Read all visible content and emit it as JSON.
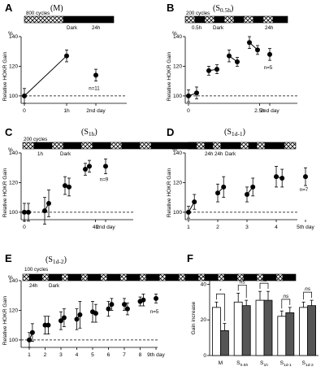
{
  "panels": [
    {
      "letter": "A",
      "title": "(M)",
      "ylabel": "Relative HOKR Gain",
      "yunit": "%",
      "bar": {
        "cycles": "800 cycles",
        "dark": "Dark",
        "hours": "24h"
      },
      "note": "n=11",
      "xticks": [
        "0",
        "1h",
        "2nd day"
      ]
    },
    {
      "letter": "B",
      "title": "(S0.5h)",
      "ylabel": "Relative HOKR Gain",
      "yunit": "%",
      "bar": {
        "cycles": "200 cycles",
        "interval": "0.5h",
        "dark": "Dark",
        "hours": "24h"
      },
      "note": "n=5",
      "xticks": [
        "0",
        "2.5h",
        "2nd day"
      ]
    },
    {
      "letter": "C",
      "title": "(S1h)",
      "ylabel": "Relative HOKR Gain",
      "yunit": "%",
      "bar": {
        "cycles": "200 cycles",
        "interval": "1h",
        "dark": "Dark",
        "hours": "24h"
      },
      "note": "n=9",
      "xticks": [
        "0",
        "4h",
        "2nd day"
      ]
    },
    {
      "letter": "D",
      "title": "(S1d-1)",
      "ylabel": "Relative HOKR Gain",
      "yunit": "%",
      "bar": {
        "cycles": "200 cycles",
        "interval": "24h",
        "dark": "Dark"
      },
      "note": "n=7",
      "xticks": [
        "1",
        "2",
        "3",
        "4",
        "5th day"
      ]
    },
    {
      "letter": "E",
      "title": "(S1d-2)",
      "ylabel": "Relative HOKR Gain",
      "yunit": "%",
      "bar": {
        "cycles": "100 cycles",
        "interval": "24h",
        "dark": "Dark"
      },
      "note": "n=5",
      "xticks": [
        "1",
        "2",
        "3",
        "4",
        "5",
        "6",
        "7",
        "8",
        "9th day"
      ]
    },
    {
      "letter": "F",
      "ylabel": "Gain increase",
      "yunit": "%",
      "sig": [
        "*",
        "ns",
        "ns",
        "ns",
        "ns"
      ],
      "xticks": [
        "M",
        "S0.5h",
        "S1h",
        "S1d-1",
        "S1d-2"
      ]
    }
  ],
  "chart_data": [
    {
      "type": "line",
      "panel": "A",
      "ylim": [
        95,
        140
      ],
      "yticks": [
        100,
        120,
        140
      ],
      "series": [
        {
          "x": [
            0,
            1,
            2
          ],
          "y": [
            100,
            127,
            114
          ],
          "err": [
            5,
            4,
            4
          ]
        }
      ]
    },
    {
      "type": "line",
      "panel": "B",
      "ylim": [
        95,
        140
      ],
      "yticks": [
        100,
        120,
        140
      ],
      "series": [
        {
          "x": [
            0,
            0.2,
            0.5,
            0.7,
            1.0,
            1.2,
            1.5,
            1.7,
            2.0
          ],
          "y": [
            100,
            102,
            117,
            118,
            127,
            123,
            136,
            131,
            128
          ],
          "err": [
            4,
            4,
            3,
            3,
            4,
            3,
            4,
            3,
            4
          ]
        }
      ]
    },
    {
      "type": "line",
      "panel": "C",
      "ylim": [
        95,
        140
      ],
      "yticks": [
        100,
        120,
        140
      ],
      "series": [
        {
          "x": [
            0,
            0.2,
            1.0,
            1.2,
            2.0,
            2.2,
            3.0,
            3.2,
            4.0
          ],
          "y": [
            100,
            100,
            101,
            106,
            118,
            117,
            129,
            131,
            131
          ],
          "err": [
            6,
            6,
            9,
            9,
            6,
            6,
            4,
            4,
            5
          ]
        }
      ]
    },
    {
      "type": "line",
      "panel": "D",
      "ylim": [
        95,
        140
      ],
      "yticks": [
        100,
        120,
        140
      ],
      "series": [
        {
          "x": [
            1.0,
            1.2,
            2.0,
            2.2,
            3.0,
            3.2,
            4.0,
            4.2,
            5.0
          ],
          "y": [
            100,
            107,
            113,
            117,
            112,
            117,
            124,
            123,
            124
          ],
          "err": [
            4,
            5,
            6,
            7,
            5,
            6,
            7,
            6,
            6
          ]
        }
      ]
    },
    {
      "type": "line",
      "panel": "E",
      "ylim": [
        95,
        140
      ],
      "yticks": [
        100,
        120,
        140
      ],
      "series": [
        {
          "x": [
            1.0,
            1.2,
            2.0,
            2.2,
            3.0,
            3.2,
            4.0,
            4.2,
            5.0,
            5.2,
            6.0,
            6.2,
            7.0,
            7.2,
            8.0,
            8.2,
            9.0
          ],
          "y": [
            100,
            105,
            110,
            110,
            113,
            115,
            114,
            117,
            119,
            118,
            121,
            124,
            124,
            121,
            126,
            127,
            128
          ],
          "err": [
            5,
            6,
            6,
            6,
            6,
            6,
            7,
            9,
            7,
            6,
            5,
            4,
            4,
            4,
            3,
            4,
            3
          ]
        }
      ]
    },
    {
      "type": "bar",
      "panel": "F",
      "categories": [
        "M",
        "S0.5h",
        "S1h",
        "S1d-1",
        "S1d-2"
      ],
      "ylim": [
        0,
        42
      ],
      "yticks": [
        0,
        20,
        40
      ],
      "series": [
        {
          "values": [
            27,
            30,
            31,
            22,
            27
          ],
          "err": [
            3,
            5,
            5,
            3,
            3
          ]
        },
        {
          "values": [
            14,
            28,
            31,
            24,
            28
          ],
          "err": [
            4,
            3,
            5,
            3,
            3
          ]
        }
      ]
    }
  ]
}
